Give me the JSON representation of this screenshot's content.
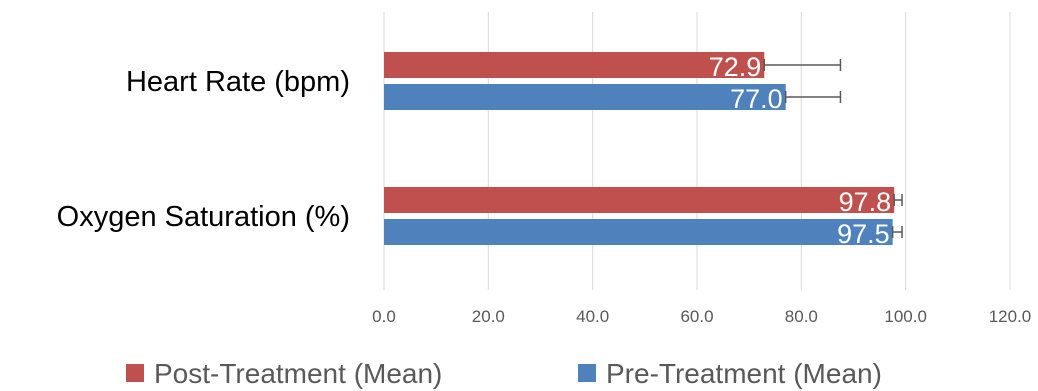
{
  "chart_data": {
    "type": "bar",
    "orientation": "horizontal",
    "categories": [
      "Heart Rate (bpm)",
      "Oxygen Saturation (%)"
    ],
    "series": [
      {
        "name": "Post-Treatment (Mean)",
        "color": "#C0504D",
        "values": [
          72.9,
          97.8
        ],
        "labels": [
          "72.9",
          "97.8"
        ],
        "error_upper": [
          87.5,
          99.3
        ]
      },
      {
        "name": "Pre-Treatment (Mean)",
        "color": "#4F81BD",
        "values": [
          77.0,
          97.5
        ],
        "labels": [
          "77.0",
          "97.5"
        ],
        "error_upper": [
          87.5,
          99.3
        ]
      }
    ],
    "x_ticks": [
      "0.0",
      "20.0",
      "40.0",
      "60.0",
      "80.0",
      "100.0",
      "120.0"
    ],
    "xlim": [
      0,
      120
    ],
    "grid": "vertical",
    "legend_position": "bottom",
    "error_bars": true
  }
}
